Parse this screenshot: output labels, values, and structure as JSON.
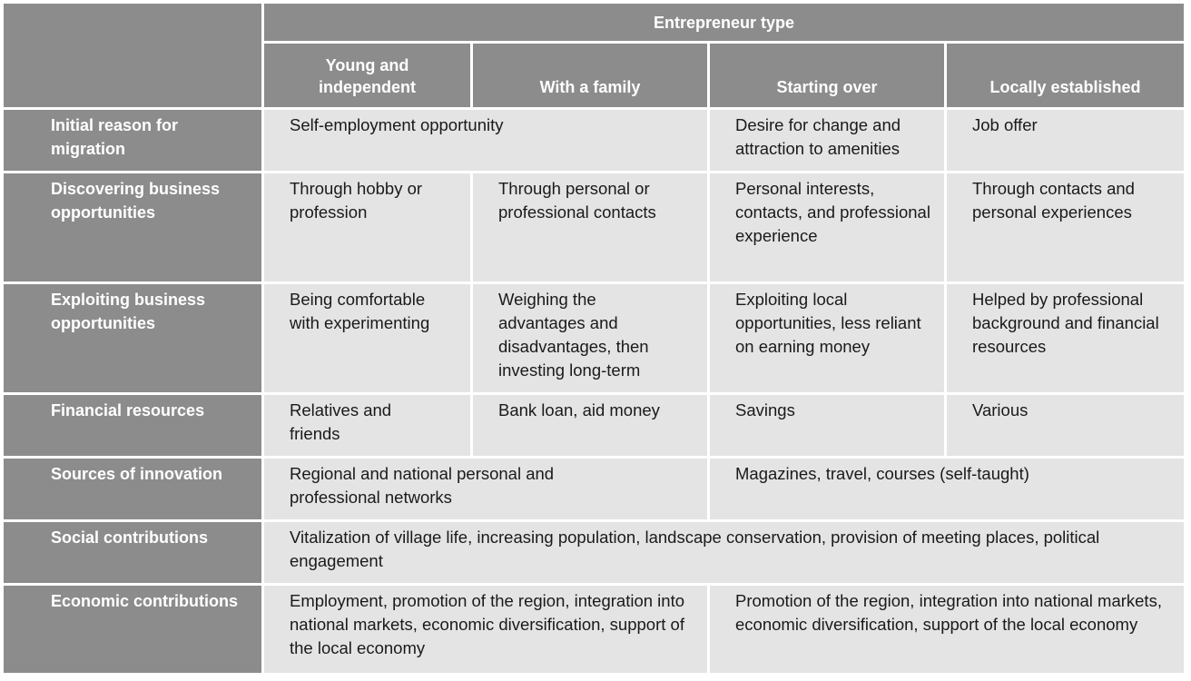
{
  "table": {
    "group_header": "Entrepreneur type",
    "columns": [
      "Young and independent",
      "With a family",
      "Starting over",
      "Locally established"
    ],
    "rows": [
      {
        "label": "Initial reason for migration",
        "cells": [
          "Self-employment opportunity",
          "Desire for change and attraction to amenities",
          "Job offer"
        ]
      },
      {
        "label": "Discovering business opportunities",
        "cells": [
          "Through hobby or profession",
          "Through personal or professional contacts",
          "Personal interests, contacts, and professional experience",
          "Through contacts and personal experiences"
        ]
      },
      {
        "label": "Exploiting business opportunities",
        "cells": [
          "Being comfortable with experimenting",
          "Weighing the advantages and disadvantages, then investing long-term",
          "Exploiting local opportunities, less reliant on earning money",
          "Helped by professional background and financial resources"
        ]
      },
      {
        "label": "Financial resources",
        "cells": [
          "Relatives and friends",
          "Bank loan, aid money",
          "Savings",
          "Various"
        ]
      },
      {
        "label": "Sources of innovation",
        "cells": [
          "Regional and national personal and professional networks",
          "Magazines, travel, courses (self-taught)"
        ]
      },
      {
        "label": "Social contributions",
        "cells": [
          "Vitalization of village life, increasing population, landscape conservation, provision of meeting places, political engagement"
        ]
      },
      {
        "label": "Economic contributions",
        "cells": [
          "Employment, promotion of the region, integration into national markets, economic diversification, support of the local economy",
          "Promotion of the region, integration into national markets, economic diversification, support of the local economy"
        ]
      }
    ]
  }
}
